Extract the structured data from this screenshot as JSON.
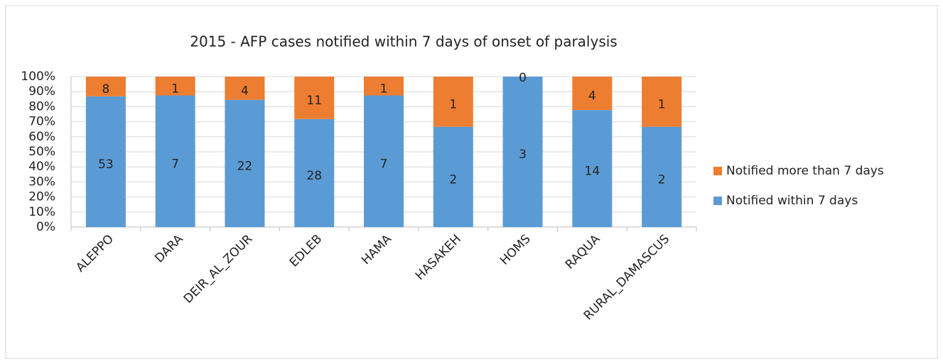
{
  "chart_data": {
    "type": "bar",
    "stacking": "percent",
    "title": "2015 - AFP cases notified within 7 days of onset of paralysis",
    "categories": [
      "ALEPPO",
      "DARA",
      "DEIR_AL_ZOUR",
      "EDLEB",
      "HAMA",
      "HASAKEH",
      "HOMS",
      "RAQUA",
      "RURAL_DAMASCUS"
    ],
    "series": [
      {
        "name": "Notified within 7 days",
        "color": "#5b9bd5",
        "values": [
          53,
          7,
          22,
          28,
          7,
          2,
          3,
          14,
          2
        ]
      },
      {
        "name": "Notified more than 7 days",
        "color": "#ed7d31",
        "values": [
          8,
          1,
          4,
          11,
          1,
          1,
          0,
          4,
          1
        ]
      }
    ],
    "ylim": [
      0,
      100
    ],
    "yticks": [
      {
        "value": 0,
        "label": "0%"
      },
      {
        "value": 10,
        "label": "10%"
      },
      {
        "value": 20,
        "label": "20%"
      },
      {
        "value": 30,
        "label": "30%"
      },
      {
        "value": 40,
        "label": "40%"
      },
      {
        "value": 50,
        "label": "50%"
      },
      {
        "value": 60,
        "label": "60%"
      },
      {
        "value": 70,
        "label": "70%"
      },
      {
        "value": 80,
        "label": "80%"
      },
      {
        "value": 90,
        "label": "90%"
      },
      {
        "value": 100,
        "label": "100%"
      }
    ],
    "grid": true,
    "legend": "right"
  }
}
